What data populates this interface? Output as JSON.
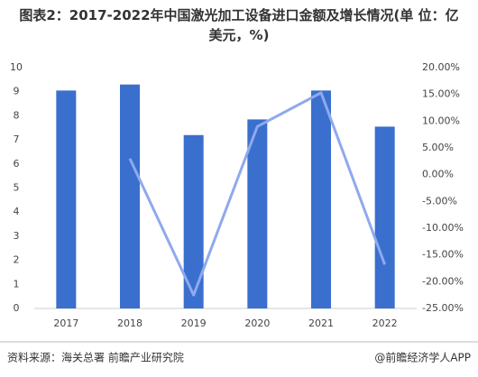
{
  "chart_data": {
    "type": "bar_line",
    "title": "图表2：2017-2022年中国激光加工设备进口金额及增长情况(单 位：亿美元，%)",
    "categories": [
      "2017",
      "2018",
      "2019",
      "2020",
      "2021",
      "2022"
    ],
    "series": [
      {
        "type": "bar",
        "color": "#3a6fce",
        "values": [
          9.05,
          9.3,
          7.2,
          7.85,
          9.05,
          7.55
        ]
      },
      {
        "type": "line",
        "axis": "y2",
        "color": "#8fa9ee",
        "values": [
          null,
          3.0,
          -22.5,
          9.0,
          15.3,
          -16.8
        ]
      }
    ],
    "ylim": [
      0,
      10
    ],
    "yticks": [
      0,
      1,
      2,
      3,
      4,
      5,
      6,
      7,
      8,
      9,
      10
    ],
    "y2lim": [
      -25,
      20
    ],
    "y2ticks": [
      {
        "value": -25,
        "label": "-25.00%"
      },
      {
        "value": -20,
        "label": "-20.00%"
      },
      {
        "value": -15,
        "label": "-15.00%"
      },
      {
        "value": -10,
        "label": "-10.00%"
      },
      {
        "value": -5,
        "label": "-5.00%"
      },
      {
        "value": 0,
        "label": "0.00%"
      },
      {
        "value": 5,
        "label": "5.00%"
      },
      {
        "value": 10,
        "label": "10.00%"
      },
      {
        "value": 15,
        "label": "15.00%"
      },
      {
        "value": 20,
        "label": "20.00%"
      }
    ],
    "source": "资料来源：海关总署 前瞻产业研究院",
    "brand": "@前瞻经济学人APP"
  }
}
